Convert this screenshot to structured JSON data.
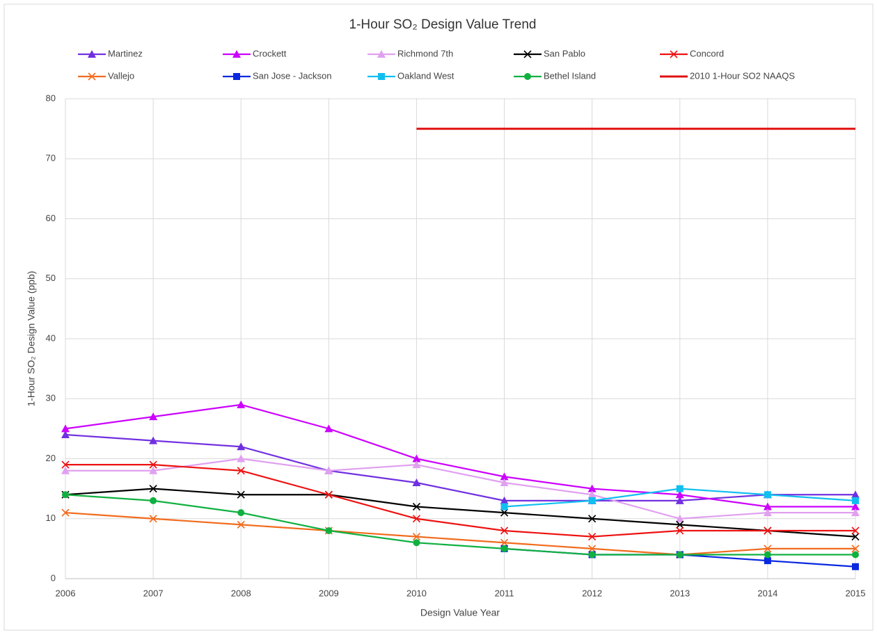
{
  "chart_data": {
    "type": "line",
    "title": "1-Hour SO₂ Design Value Trend",
    "x_label": "Design Value Year",
    "y_label": "1-Hour SO₂ Design Value (ppb)",
    "x": [
      2006,
      2007,
      2008,
      2009,
      2010,
      2011,
      2012,
      2013,
      2014,
      2015
    ],
    "xlim": [
      2006,
      2015
    ],
    "xticks": [
      2006,
      2007,
      2008,
      2009,
      2010,
      2011,
      2012,
      2013,
      2014,
      2015
    ],
    "ylim": [
      0,
      80
    ],
    "yticks": [
      0,
      10,
      20,
      30,
      40,
      50,
      60,
      70,
      80
    ],
    "grid": true,
    "legend": "top",
    "series": [
      {
        "name": "Martinez",
        "color": "#7030e0",
        "marker": "triangle",
        "values": [
          24,
          23,
          22,
          18,
          16,
          13,
          13,
          13,
          14,
          14
        ]
      },
      {
        "name": "Crockett",
        "color": "#cc00ff",
        "marker": "triangle",
        "values": [
          25,
          27,
          29,
          25,
          20,
          17,
          15,
          14,
          12,
          12
        ]
      },
      {
        "name": "Richmond  7th",
        "color": "#e0a0f0",
        "marker": "triangle",
        "values": [
          18,
          18,
          20,
          18,
          19,
          16,
          14,
          10,
          11,
          11
        ]
      },
      {
        "name": "San Pablo",
        "color": "#000000",
        "marker": "x",
        "values": [
          14,
          15,
          14,
          14,
          12,
          11,
          10,
          9,
          8,
          7
        ]
      },
      {
        "name": "Concord",
        "color": "#ee1111",
        "marker": "x",
        "values": [
          19,
          19,
          18,
          14,
          10,
          8,
          7,
          8,
          8,
          8
        ]
      },
      {
        "name": "Vallejo",
        "color": "#f26b1d",
        "marker": "x",
        "values": [
          11,
          10,
          9,
          8,
          7,
          6,
          5,
          4,
          5,
          5
        ]
      },
      {
        "name": "San Jose - Jackson",
        "color": "#0a28e0",
        "marker": "square",
        "values": [
          null,
          null,
          null,
          null,
          null,
          5,
          4,
          4,
          3,
          2
        ]
      },
      {
        "name": "Oakland West",
        "color": "#10bff0",
        "marker": "square",
        "values": [
          null,
          null,
          null,
          null,
          null,
          12,
          13,
          15,
          14,
          13
        ]
      },
      {
        "name": "Bethel Island",
        "color": "#10b040",
        "marker": "circle",
        "values": [
          14,
          13,
          11,
          8,
          6,
          5,
          4,
          4,
          4,
          4
        ]
      },
      {
        "name": "2010 1-Hour SO2 NAAQS",
        "color": "#e01010",
        "marker": "none",
        "values": [
          null,
          null,
          null,
          null,
          75,
          75,
          75,
          75,
          75,
          75
        ]
      }
    ]
  }
}
